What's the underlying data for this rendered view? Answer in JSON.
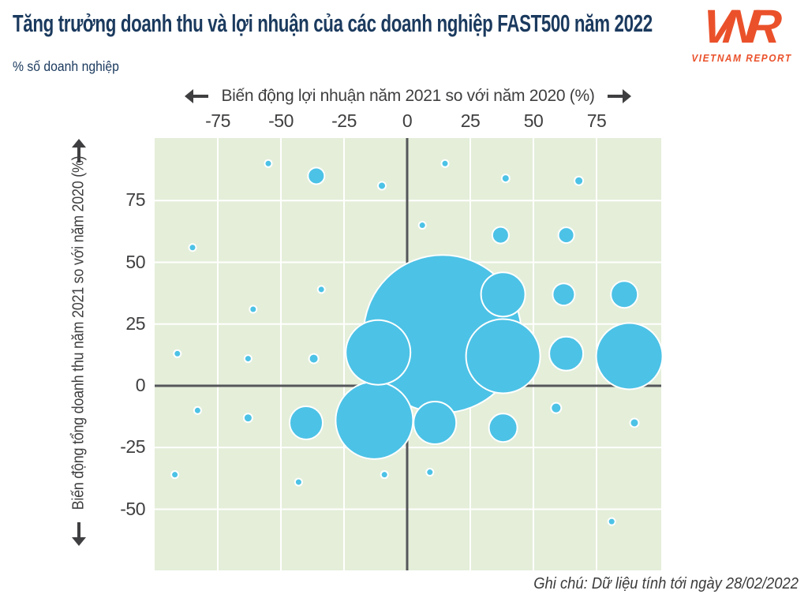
{
  "header": {
    "title": "Tăng trưởng doanh thu và lợi nhuận của các doanh nghiệp FAST500 năm 2022",
    "subtitle": "% số doanh nghiệp"
  },
  "brand": {
    "logo_text": "VNR",
    "logo_caption": "VIETNAM REPORT",
    "logo_color": "#ea512b"
  },
  "footer": {
    "note": "Ghi chú: Dữ liệu tính tới ngày 28/02/2022"
  },
  "chart_data": {
    "type": "scatter",
    "subtype": "bubble",
    "title": "Tăng trưởng doanh thu và lợi nhuận của các doanh nghiệp FAST500 năm 2022",
    "units_note": "% số doanh nghiệp",
    "x_axis_label": "Biến động lợi nhuận năm 2021 so với năm 2020 (%)",
    "y_axis_label": "Biến động tổng doanh thu  năm 2021 so với năm 2020 (%)",
    "x_ticks": [
      -75,
      -50,
      -25,
      0,
      25,
      50,
      75
    ],
    "y_ticks": [
      75,
      50,
      25,
      0,
      -25,
      -50
    ],
    "xlim": [
      -100,
      100
    ],
    "ylim": [
      -75,
      100
    ],
    "grid": true,
    "legend": "none",
    "background_color": "#e4eed9",
    "gridline_color": "#ffffff",
    "zero_axis_color": "#55565a",
    "bubble_fill": "#4cc2e6",
    "bubble_stroke": "#ffffff",
    "size_note": "Bubble area encodes share of enterprises (% số doanh nghiệp); values are not labeled on the chart. r is bubble radius in screenshot pixels.",
    "bubbles": [
      {
        "x": -55,
        "y": 90,
        "r": 4.5
      },
      {
        "x": -36,
        "y": 85,
        "r": 10.5
      },
      {
        "x": -10,
        "y": 81,
        "r": 5
      },
      {
        "x": 15,
        "y": 90,
        "r": 4.5
      },
      {
        "x": 39,
        "y": 84,
        "r": 5
      },
      {
        "x": 68,
        "y": 83,
        "r": 5.5
      },
      {
        "x": -85,
        "y": 56,
        "r": 4.5
      },
      {
        "x": 6,
        "y": 65,
        "r": 4.5
      },
      {
        "x": 37,
        "y": 61,
        "r": 10.5
      },
      {
        "x": 63,
        "y": 61,
        "r": 10
      },
      {
        "x": -61,
        "y": 31,
        "r": 4.5
      },
      {
        "x": -34,
        "y": 39,
        "r": 4.5
      },
      {
        "x": 38,
        "y": 37,
        "r": 28
      },
      {
        "x": 62,
        "y": 37,
        "r": 14
      },
      {
        "x": 86,
        "y": 37,
        "r": 17
      },
      {
        "x": 14,
        "y": 21,
        "r": 100
      },
      {
        "x": -11.5,
        "y": 13.5,
        "r": 41
      },
      {
        "x": 38,
        "y": 12,
        "r": 47
      },
      {
        "x": 63,
        "y": 13,
        "r": 21.5
      },
      {
        "x": 88,
        "y": 12,
        "r": 42
      },
      {
        "x": -91,
        "y": 13,
        "r": 4.5
      },
      {
        "x": -63,
        "y": 11,
        "r": 4.5
      },
      {
        "x": -37,
        "y": 11,
        "r": 6
      },
      {
        "x": -83,
        "y": -10,
        "r": 4.5
      },
      {
        "x": -63,
        "y": -13,
        "r": 5.5
      },
      {
        "x": -40,
        "y": -15,
        "r": 21
      },
      {
        "x": -13,
        "y": -14,
        "r": 49
      },
      {
        "x": 11,
        "y": -15,
        "r": 27
      },
      {
        "x": 38,
        "y": -17,
        "r": 18
      },
      {
        "x": 59,
        "y": -9,
        "r": 6.5
      },
      {
        "x": 90,
        "y": -15,
        "r": 5.5
      },
      {
        "x": -92,
        "y": -36,
        "r": 4.5
      },
      {
        "x": -43,
        "y": -39,
        "r": 4.5
      },
      {
        "x": -9,
        "y": -36,
        "r": 4.5
      },
      {
        "x": 9,
        "y": -35,
        "r": 4.5
      },
      {
        "x": 81,
        "y": -55,
        "r": 4.5
      }
    ]
  }
}
